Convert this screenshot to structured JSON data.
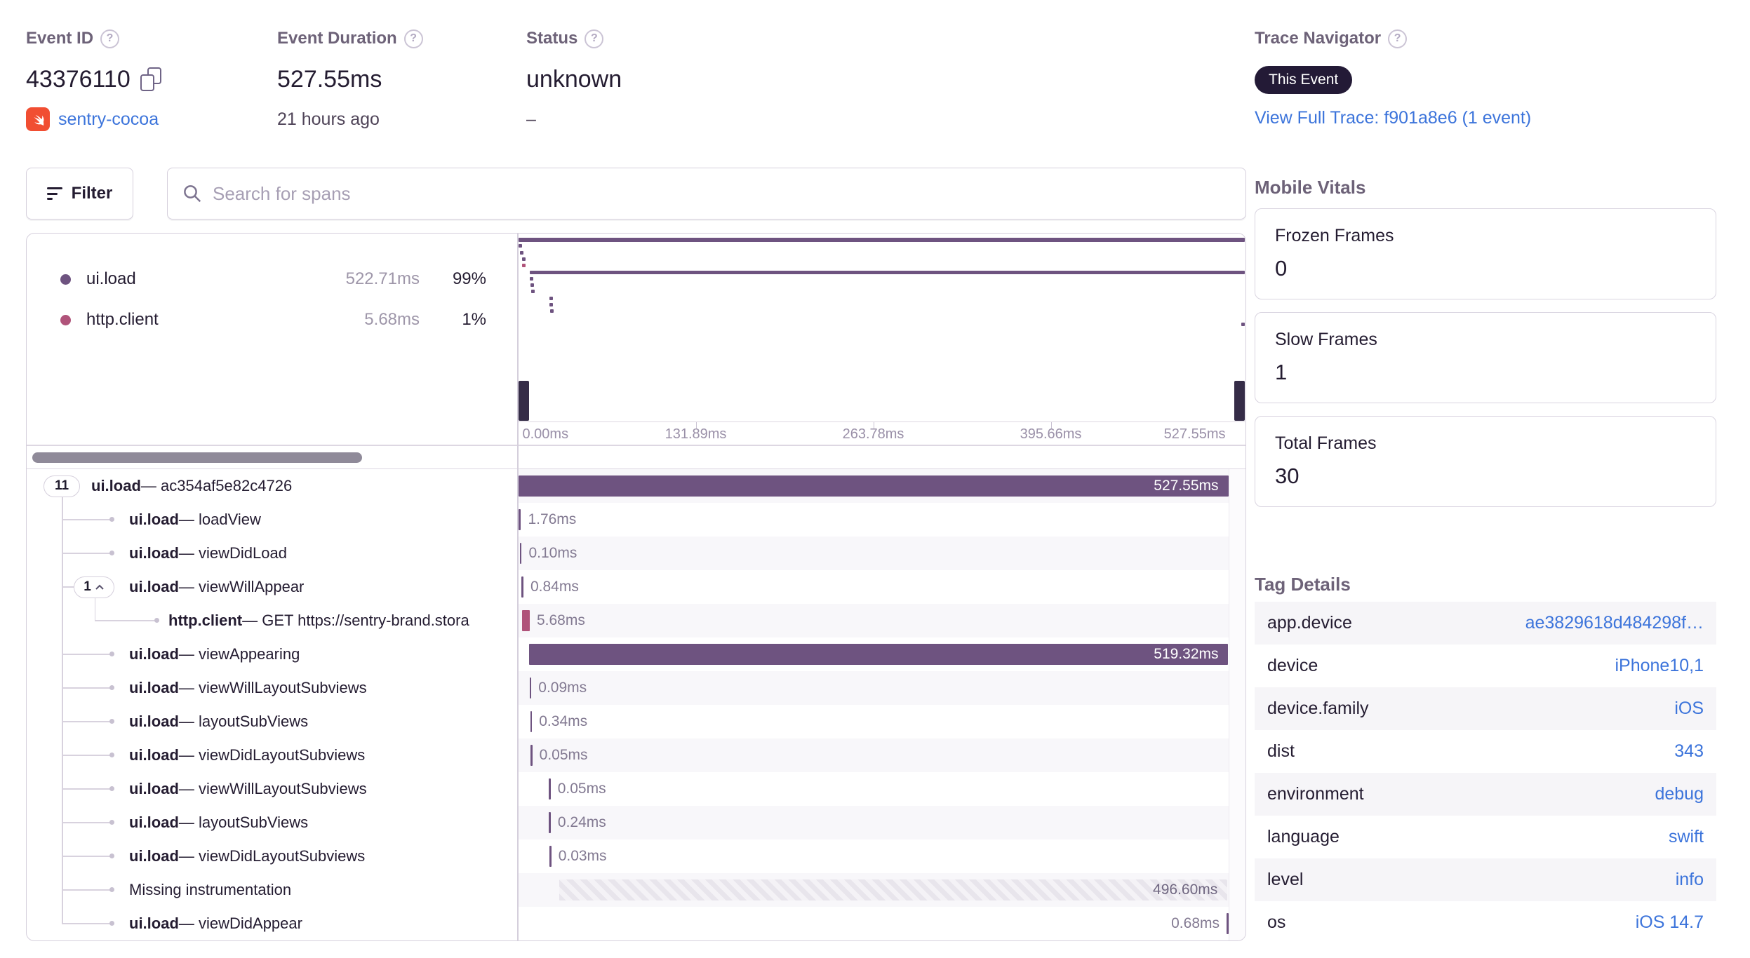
{
  "header": {
    "event_id_label": "Event ID",
    "event_id_value": "43376110",
    "project_name": "sentry-cocoa",
    "duration_label": "Event Duration",
    "duration_value": "527.55ms",
    "duration_sub": "21 hours ago",
    "status_label": "Status",
    "status_value": "unknown",
    "status_sub": "–"
  },
  "trace_navigator": {
    "label": "Trace Navigator",
    "badge": "This Event",
    "link": "View Full Trace: f901a8e6 (1 event)"
  },
  "toolbar": {
    "filter_label": "Filter",
    "search_placeholder": "Search for spans"
  },
  "legend": {
    "items": [
      {
        "op": "ui.load",
        "duration": "522.71ms",
        "percent": "99%",
        "color": "#6e5380"
      },
      {
        "op": "http.client",
        "duration": "5.68ms",
        "percent": "1%",
        "color": "#b0537a"
      }
    ]
  },
  "minimap": {
    "total_ms": 527.55,
    "axis_labels": [
      "0.00ms",
      "131.89ms",
      "263.78ms",
      "395.66ms",
      "527.55ms"
    ]
  },
  "spans": [
    {
      "op": "ui.load",
      "name": "ac354af5e82c4726",
      "duration_label": "527.55ms",
      "duration_ms": 527.55,
      "start_ms": 0,
      "kind": "ui.load",
      "level": 1,
      "pill": "11",
      "pill_caret": false,
      "label_pos": "inside"
    },
    {
      "op": "ui.load",
      "name": "loadView",
      "duration_label": "1.76ms",
      "duration_ms": 1.76,
      "start_ms": 0.3,
      "kind": "ui.load",
      "level": 2,
      "label_pos": "right"
    },
    {
      "op": "ui.load",
      "name": "viewDidLoad",
      "duration_label": "0.10ms",
      "duration_ms": 0.1,
      "start_ms": 1.3,
      "kind": "ui.load",
      "level": 2,
      "label_pos": "right"
    },
    {
      "op": "ui.load",
      "name": "viewWillAppear",
      "duration_label": "0.84ms",
      "duration_ms": 0.84,
      "start_ms": 2.6,
      "kind": "ui.load",
      "level": 2,
      "pill": "1",
      "pill_caret": true,
      "label_pos": "right"
    },
    {
      "op": "http.client",
      "name": "GET https://sentry-brand.stora",
      "duration_label": "5.68ms",
      "duration_ms": 5.68,
      "start_ms": 2.9,
      "kind": "http.client",
      "level": 3,
      "label_pos": "right"
    },
    {
      "op": "ui.load",
      "name": "viewAppearing",
      "duration_label": "519.32ms",
      "duration_ms": 519.32,
      "start_ms": 8.23,
      "kind": "ui.load",
      "level": 2,
      "label_pos": "inside"
    },
    {
      "op": "ui.load",
      "name": "viewWillLayoutSubviews",
      "duration_label": "0.09ms",
      "duration_ms": 0.09,
      "start_ms": 8.5,
      "kind": "ui.load",
      "level": 2,
      "label_pos": "right"
    },
    {
      "op": "ui.load",
      "name": "layoutSubViews",
      "duration_label": "0.34ms",
      "duration_ms": 0.34,
      "start_ms": 9.0,
      "kind": "ui.load",
      "level": 2,
      "label_pos": "right"
    },
    {
      "op": "ui.load",
      "name": "viewDidLayoutSubviews",
      "duration_label": "0.05ms",
      "duration_ms": 0.05,
      "start_ms": 9.2,
      "kind": "ui.load",
      "level": 2,
      "label_pos": "right"
    },
    {
      "op": "ui.load",
      "name": "viewWillLayoutSubviews",
      "duration_label": "0.05ms",
      "duration_ms": 0.05,
      "start_ms": 22.8,
      "kind": "ui.load",
      "level": 2,
      "label_pos": "right"
    },
    {
      "op": "ui.load",
      "name": "layoutSubViews",
      "duration_label": "0.24ms",
      "duration_ms": 0.24,
      "start_ms": 22.9,
      "kind": "ui.load",
      "level": 2,
      "label_pos": "right"
    },
    {
      "op": "ui.load",
      "name": "viewDidLayoutSubviews",
      "duration_label": "0.03ms",
      "duration_ms": 0.03,
      "start_ms": 23.3,
      "kind": "ui.load",
      "level": 2,
      "label_pos": "right"
    },
    {
      "op": null,
      "name": "Missing instrumentation",
      "duration_label": "496.60ms",
      "duration_ms": 496.6,
      "start_ms": 30.3,
      "kind": "missing",
      "level": 2,
      "label_pos": "inside"
    },
    {
      "op": "ui.load",
      "name": "viewDidAppear",
      "duration_label": "0.68ms",
      "duration_ms": 0.68,
      "start_ms": 526.87,
      "kind": "ui.load",
      "level": 2,
      "label_pos": "left"
    }
  ],
  "mobile_vitals": {
    "title": "Mobile Vitals",
    "cards": [
      {
        "label": "Frozen Frames",
        "value": "0"
      },
      {
        "label": "Slow Frames",
        "value": "1"
      },
      {
        "label": "Total Frames",
        "value": "30"
      }
    ]
  },
  "tag_details": {
    "title": "Tag Details",
    "rows": [
      {
        "key": "app.device",
        "value": "ae3829618d484298f…"
      },
      {
        "key": "device",
        "value": "iPhone10,1"
      },
      {
        "key": "device.family",
        "value": "iOS"
      },
      {
        "key": "dist",
        "value": "343"
      },
      {
        "key": "environment",
        "value": "debug"
      },
      {
        "key": "language",
        "value": "swift"
      },
      {
        "key": "level",
        "value": "info"
      },
      {
        "key": "os",
        "value": "iOS 14.7"
      }
    ]
  },
  "colors": {
    "ui_load": "#6e5380",
    "http_client": "#b0537a",
    "link_blue": "#3c74db",
    "badge_bg": "#231a36"
  }
}
